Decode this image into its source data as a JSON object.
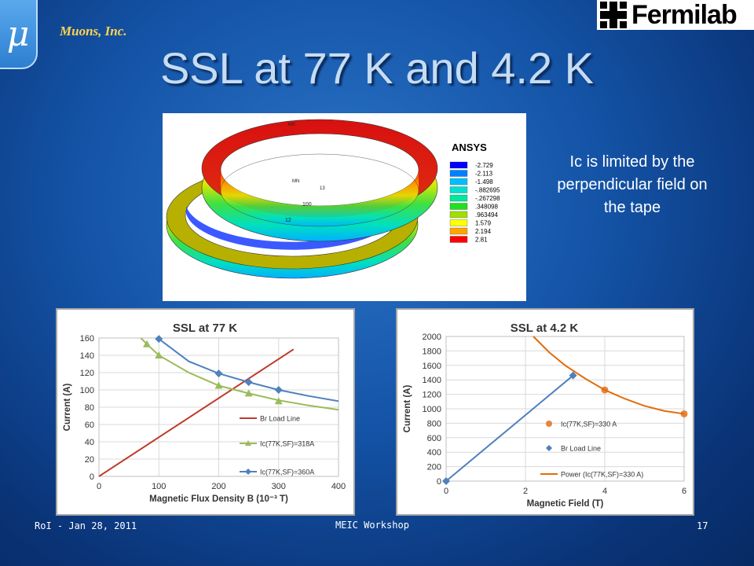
{
  "logo": {
    "symbol": "μ",
    "company": "Muons, Inc.",
    "partner": "Fermilab"
  },
  "title": "SSL at 77 K and 4.2 K",
  "note": [
    "Ic is limited by the",
    "perpendicular field on",
    "the tape"
  ],
  "ansys": {
    "brand": "ANSYS",
    "legend": [
      "-2.729",
      "-2.113",
      "-1.498",
      "-.882695",
      "-.267298",
      ".348098",
      ".963494",
      "1.579",
      "2.194",
      "2.81"
    ],
    "colors": [
      "#0000ff",
      "#0080ff",
      "#00bfff",
      "#00e0d0",
      "#00e8a0",
      "#20e020",
      "#a0e000",
      "#ffff00",
      "#ffa500",
      "#ff0000"
    ],
    "labels": [
      "MX",
      "MN",
      "100",
      "12",
      "13"
    ]
  },
  "footer": {
    "left": "RoI - Jan 28, 2011",
    "center": "MEIC Workshop",
    "right": "17"
  },
  "chart_data": [
    {
      "type": "line",
      "title": "SSL at 77 K",
      "xlabel": "Magnetic Flux Density B (10⁻³ T)",
      "ylabel": "Current (A)",
      "xlim": [
        0,
        400
      ],
      "ylim": [
        0,
        160
      ],
      "xticks": [
        0,
        100,
        200,
        300,
        400
      ],
      "yticks": [
        0,
        20,
        40,
        60,
        80,
        100,
        120,
        140,
        160
      ],
      "series": [
        {
          "name": "Br Load Line",
          "color": "#c0392b",
          "marker": "none",
          "x": [
            0,
            325
          ],
          "y": [
            0,
            147
          ]
        },
        {
          "name": "Ic(77K,SF)=318A",
          "color": "#9bbb59",
          "marker": "triangle",
          "x": [
            80,
            100,
            200,
            250,
            300
          ],
          "y": [
            153,
            140,
            105,
            96,
            87
          ],
          "curve_x": [
            70,
            80,
            100,
            150,
            200,
            250,
            300,
            350,
            400
          ],
          "curve_y": [
            160,
            153,
            140,
            120,
            105,
            96,
            88,
            82,
            77
          ]
        },
        {
          "name": "Ic(77K,SF)=360A",
          "color": "#4f81bd",
          "marker": "diamond",
          "x": [
            100,
            200,
            250,
            300
          ],
          "y": [
            159,
            119,
            109,
            100
          ],
          "curve_x": [
            100,
            150,
            200,
            250,
            300,
            350,
            400
          ],
          "curve_y": [
            159,
            133,
            119,
            109,
            100,
            93,
            87
          ]
        }
      ]
    },
    {
      "type": "line",
      "title": "SSL at 4.2 K",
      "xlabel": "Magnetic Field (T)",
      "ylabel": "Current (A)",
      "xlim": [
        0,
        6
      ],
      "ylim": [
        0,
        2000
      ],
      "xticks": [
        0,
        2,
        4,
        6
      ],
      "yticks": [
        0,
        200,
        400,
        600,
        800,
        1000,
        1200,
        1400,
        1600,
        1800,
        2000
      ],
      "series": [
        {
          "name": "Ic(77K,SF)=330 A",
          "color": "#e6853a",
          "marker": "circle",
          "x": [
            4,
            6
          ],
          "y": [
            1260,
            930
          ]
        },
        {
          "name": "Br Load Line",
          "color": "#4f81bd",
          "marker": "diamond",
          "x": [
            0,
            3.2
          ],
          "y": [
            0,
            1460
          ]
        },
        {
          "name": "Power (Ic(77K,SF)=330 A)",
          "color": "#e36c09",
          "marker": "none",
          "x": [
            2.2,
            2.6,
            3.0,
            3.5,
            4.0,
            4.5,
            5.0,
            5.5,
            6.0
          ],
          "y": [
            2000,
            1780,
            1600,
            1420,
            1260,
            1140,
            1040,
            970,
            930
          ]
        }
      ]
    }
  ]
}
